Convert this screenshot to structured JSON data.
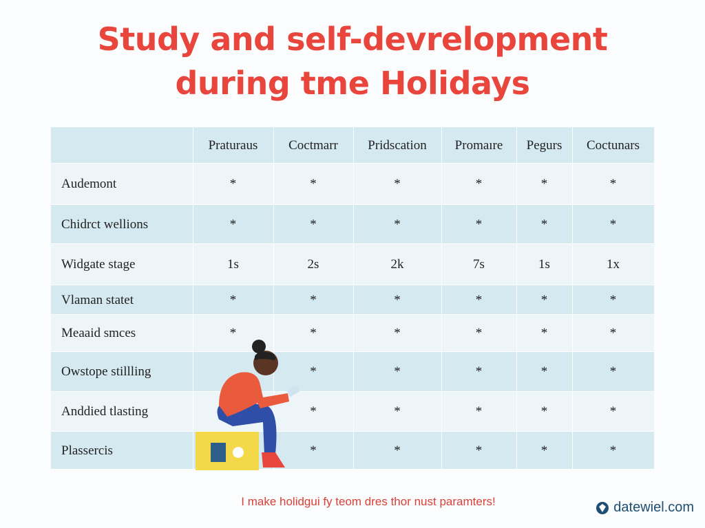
{
  "title": {
    "line1": "Study and self-devrelopment",
    "line2": "during tme Holidays"
  },
  "table": {
    "columns": [
      "Praturaus",
      "Coctmarr",
      "Pridscation",
      "Promaıre",
      "Pegurs",
      "Coctunars"
    ],
    "rows": [
      {
        "label": "Audemont",
        "cells": [
          "*",
          "*",
          "*",
          "*",
          "*",
          "*"
        ]
      },
      {
        "label": "Chidrct wellions",
        "cells": [
          "*",
          "*",
          "*",
          "*",
          "*",
          "*"
        ]
      },
      {
        "label": "Widgate stage",
        "cells": [
          "1s",
          "2s",
          "2k",
          "7s",
          "1s",
          "1x"
        ]
      },
      {
        "label": "Vlaman statet",
        "cells": [
          "*",
          "*",
          "*",
          "*",
          "*",
          "*"
        ]
      },
      {
        "label": "Meaaid smces",
        "cells": [
          "*",
          "*",
          "*",
          "*",
          "*",
          "*"
        ]
      },
      {
        "label": "Owstope stillling",
        "cells": [
          null,
          "*",
          "*",
          "*",
          "*",
          "*"
        ]
      },
      {
        "label": "Anddied tlasting",
        "cells": [
          null,
          "*",
          "*",
          "*",
          "*",
          "*"
        ]
      },
      {
        "label": "Plassercis",
        "cells": [
          null,
          "*",
          "*",
          "*",
          "*",
          "*"
        ]
      }
    ]
  },
  "footer": {
    "tagline": "I make holidgui fy teom dres thor nust paramters!",
    "brand": "datewiel.com"
  }
}
